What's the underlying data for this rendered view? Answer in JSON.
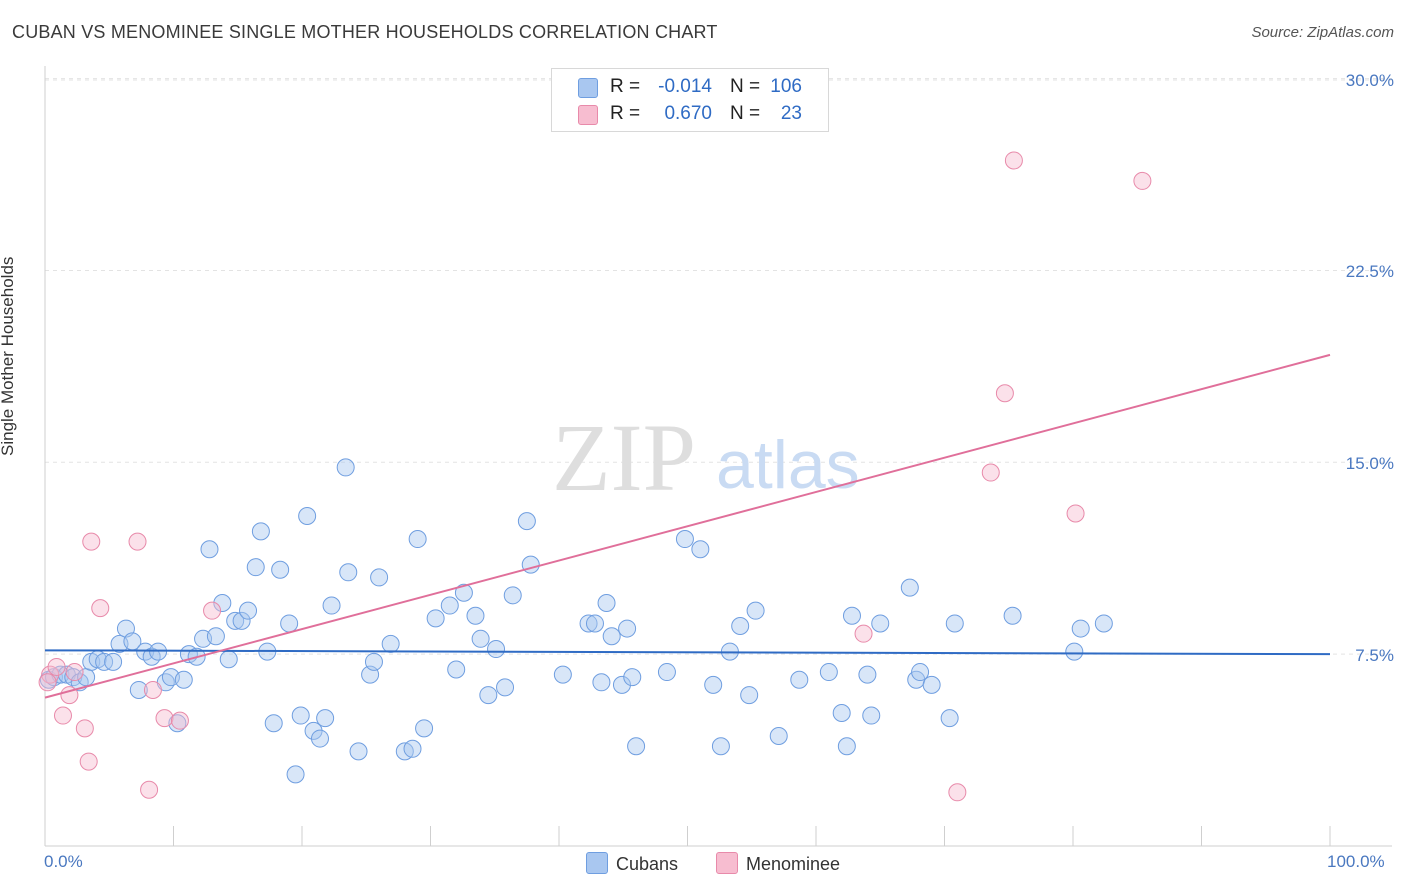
{
  "header": {
    "title": "CUBAN VS MENOMINEE SINGLE MOTHER HOUSEHOLDS CORRELATION CHART",
    "source": "Source: ZipAtlas.com"
  },
  "watermark": {
    "zip": "ZIP",
    "atlas": "atlas"
  },
  "legend": {
    "rows": [
      {
        "r_label": "R =",
        "r_value": "-0.014",
        "n_label": "N =",
        "n_value": "106",
        "color": "#a9c7f0",
        "border": "#6f9ee0"
      },
      {
        "r_label": "R =",
        "r_value": "0.670",
        "n_label": "N =",
        "n_value": "23",
        "color": "#f7bdd0",
        "border": "#e88aaa"
      }
    ]
  },
  "bottom_legend": [
    {
      "label": "Cubans",
      "color": "#a9c7f0",
      "border": "#6f9ee0"
    },
    {
      "label": "Menominee",
      "color": "#f7bdd0",
      "border": "#e88aaa"
    }
  ],
  "chart_data": {
    "type": "scatter",
    "title": "CUBAN VS MENOMINEE SINGLE MOTHER HOUSEHOLDS CORRELATION CHART",
    "xlabel": "",
    "ylabel": "Single Mother Households",
    "xlim": [
      0,
      100
    ],
    "ylim": [
      0,
      30.5
    ],
    "x_tick_labels": [
      "0.0%",
      "100.0%"
    ],
    "y_ticks": [
      7.5,
      15.0,
      22.5,
      30.0
    ],
    "y_tick_labels": [
      "7.5%",
      "15.0%",
      "22.5%",
      "30.0%"
    ],
    "grid": "horizontal-dashed",
    "legend_position": "top-center",
    "series": [
      {
        "name": "Cubans",
        "color": "#a9c7f0",
        "stroke": "#6f9ee0",
        "trend": {
          "x": [
            0,
            100
          ],
          "y": [
            7.65,
            7.5
          ],
          "color": "#2f6bc4"
        },
        "points": [
          [
            0.3,
            6.5
          ],
          [
            0.7,
            6.6
          ],
          [
            1.2,
            6.7
          ],
          [
            1.7,
            6.7
          ],
          [
            2.2,
            6.6
          ],
          [
            2.7,
            6.4
          ],
          [
            3.2,
            6.6
          ],
          [
            3.6,
            7.2
          ],
          [
            4.1,
            7.3
          ],
          [
            4.6,
            7.2
          ],
          [
            5.3,
            7.2
          ],
          [
            5.8,
            7.9
          ],
          [
            6.3,
            8.5
          ],
          [
            6.8,
            8.0
          ],
          [
            7.3,
            6.1
          ],
          [
            7.8,
            7.6
          ],
          [
            8.3,
            7.4
          ],
          [
            8.8,
            7.6
          ],
          [
            9.4,
            6.4
          ],
          [
            9.8,
            6.6
          ],
          [
            10.3,
            4.8
          ],
          [
            10.8,
            6.5
          ],
          [
            11.2,
            7.5
          ],
          [
            11.8,
            7.4
          ],
          [
            12.3,
            8.1
          ],
          [
            12.8,
            11.6
          ],
          [
            13.3,
            8.2
          ],
          [
            13.8,
            9.5
          ],
          [
            14.3,
            7.3
          ],
          [
            14.8,
            8.8
          ],
          [
            15.3,
            8.8
          ],
          [
            15.8,
            9.2
          ],
          [
            16.4,
            10.9
          ],
          [
            16.8,
            12.3
          ],
          [
            17.3,
            7.6
          ],
          [
            17.8,
            4.8
          ],
          [
            18.3,
            10.8
          ],
          [
            19.0,
            8.7
          ],
          [
            19.5,
            2.8
          ],
          [
            19.9,
            5.1
          ],
          [
            20.4,
            12.9
          ],
          [
            20.9,
            4.5
          ],
          [
            21.4,
            4.2
          ],
          [
            21.8,
            5.0
          ],
          [
            22.3,
            9.4
          ],
          [
            23.4,
            14.8
          ],
          [
            23.6,
            10.7
          ],
          [
            24.4,
            3.7
          ],
          [
            25.3,
            6.7
          ],
          [
            25.6,
            7.2
          ],
          [
            26.0,
            10.5
          ],
          [
            26.9,
            7.9
          ],
          [
            28.0,
            3.7
          ],
          [
            28.6,
            3.8
          ],
          [
            29.0,
            12.0
          ],
          [
            29.5,
            4.6
          ],
          [
            30.4,
            8.9
          ],
          [
            31.5,
            9.4
          ],
          [
            32.0,
            6.9
          ],
          [
            32.6,
            9.9
          ],
          [
            33.5,
            9.0
          ],
          [
            33.9,
            8.1
          ],
          [
            34.5,
            5.9
          ],
          [
            35.1,
            7.7
          ],
          [
            35.8,
            6.2
          ],
          [
            36.4,
            9.8
          ],
          [
            37.5,
            12.7
          ],
          [
            37.8,
            11.0
          ],
          [
            40.3,
            6.7
          ],
          [
            42.3,
            8.7
          ],
          [
            42.8,
            8.7
          ],
          [
            43.3,
            6.4
          ],
          [
            43.7,
            9.5
          ],
          [
            44.1,
            8.2
          ],
          [
            44.9,
            6.3
          ],
          [
            45.3,
            8.5
          ],
          [
            45.7,
            6.6
          ],
          [
            46.0,
            3.9
          ],
          [
            48.4,
            6.8
          ],
          [
            49.8,
            12.0
          ],
          [
            51.0,
            11.6
          ],
          [
            52.0,
            6.3
          ],
          [
            52.6,
            3.9
          ],
          [
            53.3,
            7.6
          ],
          [
            54.1,
            8.6
          ],
          [
            54.8,
            5.9
          ],
          [
            55.3,
            9.2
          ],
          [
            57.1,
            4.3
          ],
          [
            58.7,
            6.5
          ],
          [
            61.0,
            6.8
          ],
          [
            62.0,
            5.2
          ],
          [
            62.4,
            3.9
          ],
          [
            62.8,
            9.0
          ],
          [
            64.0,
            6.7
          ],
          [
            64.3,
            5.1
          ],
          [
            65.0,
            8.7
          ],
          [
            67.3,
            10.1
          ],
          [
            67.8,
            6.5
          ],
          [
            68.1,
            6.8
          ],
          [
            69.0,
            6.3
          ],
          [
            70.4,
            5.0
          ],
          [
            70.8,
            8.7
          ],
          [
            75.3,
            9.0
          ],
          [
            80.1,
            7.6
          ],
          [
            80.6,
            8.5
          ],
          [
            82.4,
            8.7
          ]
        ]
      },
      {
        "name": "Menominee",
        "color": "#f7bdd0",
        "stroke": "#e88aaa",
        "trend": {
          "x": [
            0,
            100
          ],
          "y": [
            5.8,
            19.2
          ],
          "color": "#e06f9a"
        },
        "points": [
          [
            0.4,
            6.7
          ],
          [
            0.9,
            7.0
          ],
          [
            1.4,
            5.1
          ],
          [
            1.9,
            5.9
          ],
          [
            2.3,
            6.8
          ],
          [
            3.1,
            4.6
          ],
          [
            3.4,
            3.3
          ],
          [
            3.6,
            11.9
          ],
          [
            4.3,
            9.3
          ],
          [
            7.2,
            11.9
          ],
          [
            8.1,
            2.2
          ],
          [
            8.4,
            6.1
          ],
          [
            9.3,
            5.0
          ],
          [
            10.5,
            4.9
          ],
          [
            13.0,
            9.2
          ],
          [
            63.7,
            8.3
          ],
          [
            71.0,
            2.1
          ],
          [
            73.6,
            14.6
          ],
          [
            74.7,
            17.7
          ],
          [
            75.4,
            26.8
          ],
          [
            80.2,
            13.0
          ],
          [
            85.4,
            26.0
          ],
          [
            0.2,
            6.4
          ]
        ]
      }
    ]
  }
}
